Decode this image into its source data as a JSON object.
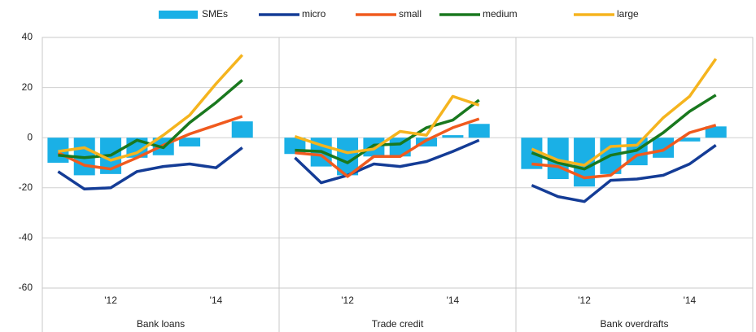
{
  "chart_data": {
    "type": "bar-line-panels",
    "ylim": [
      -60,
      40
    ],
    "yticks": [
      -60,
      -40,
      -20,
      0,
      20,
      40
    ],
    "grid": true,
    "legend": "top",
    "series": [
      {
        "name": "SMEs",
        "color": "#1ab0e6",
        "kind": "bar"
      },
      {
        "name": "micro",
        "color": "#143c96",
        "kind": "line"
      },
      {
        "name": "small",
        "color": "#f05a1e",
        "kind": "line"
      },
      {
        "name": "medium",
        "color": "#19781e",
        "kind": "line"
      },
      {
        "name": "large",
        "color": "#f5b41e",
        "kind": "line"
      }
    ],
    "panels": [
      {
        "title": "Bank loans",
        "categories": [
          null,
          null,
          "'12",
          null,
          null,
          null,
          "'14",
          null
        ],
        "values": [
          [
            -10,
            -15,
            -14.5,
            -8,
            -7,
            -3.5,
            0,
            6.5
          ],
          [
            -13.5,
            -20.5,
            -20,
            -13.5,
            -11.5,
            -10.5,
            -12,
            -4
          ],
          [
            -6,
            -11,
            -12.5,
            -8,
            -3,
            1.5,
            5,
            8.5
          ],
          [
            -7,
            -8,
            -7,
            -1,
            -4,
            6,
            14,
            23
          ],
          [
            -5.5,
            -4,
            -9,
            -6,
            1,
            9,
            21.5,
            33
          ]
        ]
      },
      {
        "title": "Trade credit",
        "categories": [
          null,
          null,
          "'12",
          null,
          null,
          null,
          "'14",
          null
        ],
        "values": [
          [
            -6.5,
            -11.5,
            -15,
            -7.5,
            -7.5,
            -3.5,
            1,
            5.5
          ],
          [
            -8,
            -18,
            -15,
            -10.5,
            -11.5,
            -9.5,
            -5.5,
            -1
          ],
          [
            -6,
            -7,
            -15.5,
            -7.5,
            -7.5,
            -1,
            4,
            7.5
          ],
          [
            -5,
            -5.5,
            -10,
            -3,
            -2.5,
            4,
            7,
            15
          ],
          [
            0.5,
            -3,
            -6,
            -4.5,
            2.5,
            1,
            16.5,
            13
          ]
        ]
      },
      {
        "title": "Bank overdrafts",
        "categories": [
          null,
          null,
          "'12",
          null,
          null,
          null,
          "'14",
          null
        ],
        "values": [
          [
            -12.5,
            -16.5,
            -19.5,
            -14.5,
            -11,
            -8,
            -1.5,
            4.5
          ],
          [
            -19,
            -23.5,
            -25.5,
            -17,
            -16.5,
            -15,
            -10.5,
            -3
          ],
          [
            -10.5,
            -11.5,
            -16,
            -15,
            -7,
            -5,
            2,
            5
          ],
          [
            -6,
            -10,
            -12.5,
            -7,
            -5,
            2,
            10.5,
            17
          ],
          [
            -4.5,
            -9,
            -11,
            -3.5,
            -3,
            8,
            16.5,
            31.5
          ]
        ]
      }
    ]
  }
}
